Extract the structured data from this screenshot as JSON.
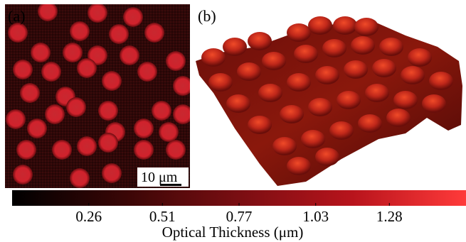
{
  "panels": [
    {
      "label": "(a)",
      "scale_bar": "10 μm"
    },
    {
      "label": "(b)"
    }
  ],
  "colorbar": {
    "title": "Optical Thickness (μm)",
    "ticks": [
      "0.26",
      "0.51",
      "0.77",
      "1.03",
      "1.28"
    ],
    "tick_values": [
      0.26,
      0.51,
      0.77,
      1.03,
      1.28
    ],
    "range": [
      0,
      1.54
    ],
    "colors": [
      "#000000",
      "#3a0606",
      "#7a0e12",
      "#b8141c",
      "#ff3a3a"
    ]
  },
  "colors": {
    "background_dark": "#2a0708",
    "cell_red": "#c8202a",
    "surface_base": "#4a0a08",
    "surface_peak": "#e03a20"
  }
}
